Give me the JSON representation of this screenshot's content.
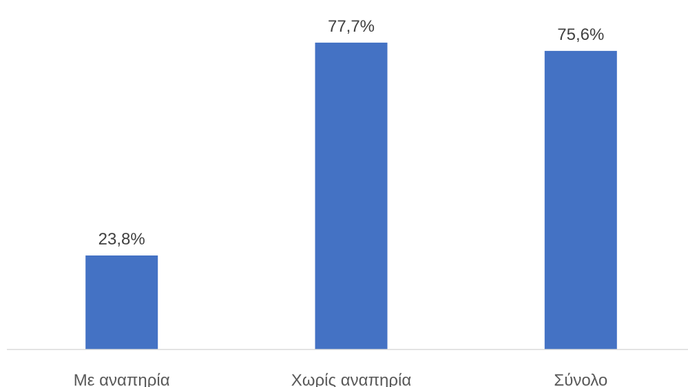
{
  "chart_data": {
    "type": "bar",
    "categories": [
      "Με αναπηρία",
      "Χωρίς αναπηρία",
      "Σύνολο"
    ],
    "values": [
      23.8,
      77.7,
      75.6
    ],
    "data_labels": [
      "23,8%",
      "77,7%",
      "75,6%"
    ],
    "unit": "%",
    "ylim": [
      0,
      85
    ],
    "grid": false,
    "legend": "none",
    "title": "",
    "xlabel": "",
    "ylabel": ""
  },
  "colors": {
    "bar": "#4472C4",
    "axis": "#D9D9D9",
    "data_label": "#404040",
    "category_label": "#595959"
  }
}
